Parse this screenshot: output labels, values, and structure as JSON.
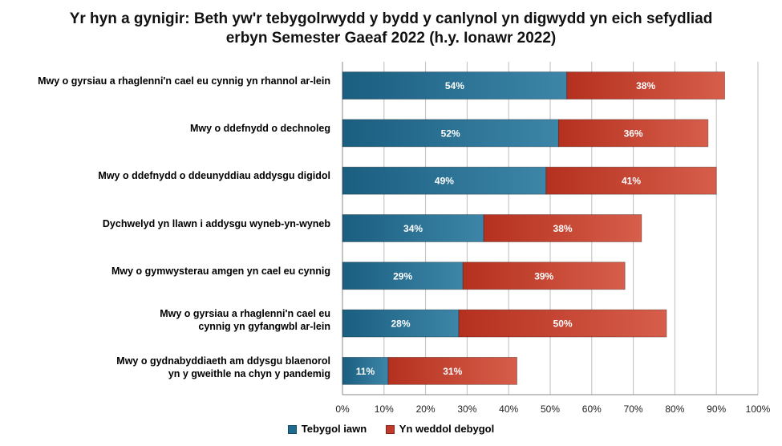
{
  "chart_data": {
    "type": "bar",
    "orientation": "horizontal",
    "stacked": true,
    "title_lines": [
      "Yr hyn a gynigir: Beth yw'r tebygolrwydd y bydd y canlynol yn digwydd yn eich sefydliad",
      "erbyn Semester Gaeaf 2022 (h.y. Ionawr 2022)"
    ],
    "categories": [
      [
        "Mwy o gyrsiau a rhaglenni'n cael eu cynnig yn rhannol ar-lein"
      ],
      [
        "Mwy o ddefnydd o dechnoleg"
      ],
      [
        "Mwy o ddefnydd o ddeunyddiau addysgu digidol"
      ],
      [
        "Dychwelyd yn llawn i addysgu wyneb-yn-wyneb"
      ],
      [
        "Mwy o gymwysterau amgen yn cael eu cynnig"
      ],
      [
        "Mwy o gyrsiau a rhaglenni'n cael eu",
        "cynnig yn gyfangwbl ar-lein"
      ],
      [
        "Mwy o gydnabyddiaeth am ddysgu blaenorol",
        "yn y gweithle na chyn y pandemig"
      ]
    ],
    "series": [
      {
        "name": "Tebygol iawn",
        "color": "#1f6a8f",
        "values": [
          54,
          52,
          49,
          34,
          29,
          28,
          11
        ],
        "labels": [
          "54%",
          "52%",
          "49%",
          "34%",
          "29%",
          "28%",
          "11%"
        ]
      },
      {
        "name": "Yn weddol debygol",
        "color": "#c0392b",
        "values": [
          38,
          36,
          41,
          38,
          39,
          50,
          31
        ],
        "labels": [
          "38%",
          "36%",
          "41%",
          "38%",
          "39%",
          "50%",
          "31%"
        ]
      }
    ],
    "xlim": [
      0,
      100
    ],
    "xticks": [
      "0%",
      "10%",
      "20%",
      "30%",
      "40%",
      "50%",
      "60%",
      "70%",
      "80%",
      "90%",
      "100%"
    ],
    "grid": true,
    "legend_position": "bottom"
  }
}
